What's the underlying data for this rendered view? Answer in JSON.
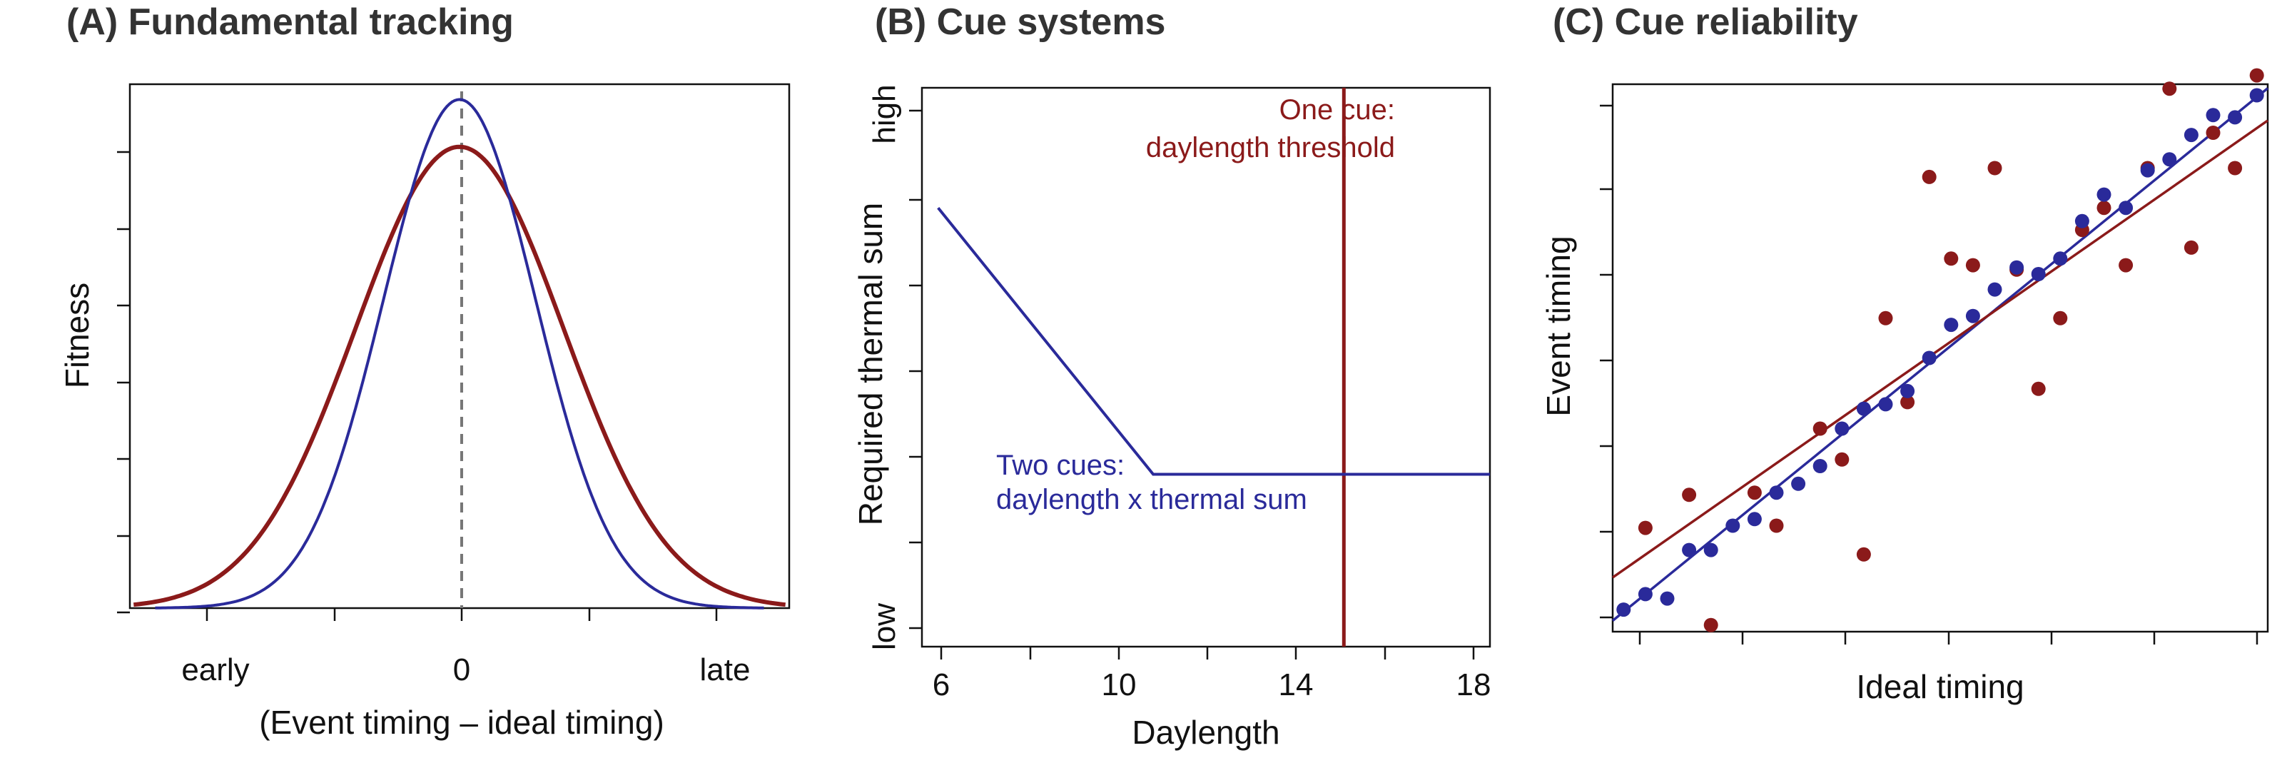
{
  "colors": {
    "red": "#8b1a1a",
    "blue": "#2a2a9a",
    "axis": "#111111",
    "dashed": "#777777"
  },
  "chart_data": [
    {
      "type": "line",
      "title": "(A) Fundamental tracking",
      "xlabel": "(Event timing – ideal timing)",
      "ylabel": "Fitness",
      "x_tick_labels": [
        "early",
        "0",
        "late"
      ],
      "xlim": [
        -2.6,
        2.6
      ],
      "ylim": [
        0,
        1.03
      ],
      "reference_line": {
        "x": 0,
        "style": "dashed"
      },
      "series": [
        {
          "color": "red",
          "curve": "gaussian",
          "peak": 0.907,
          "sd": 0.82
        },
        {
          "color": "blue",
          "curve": "gaussian",
          "peak": 1.0,
          "sd": 0.6
        }
      ]
    },
    {
      "type": "line",
      "title": "(B) Cue systems",
      "xlabel": "Daylength",
      "ylabel": "Required thermal sum",
      "x_ticks": [
        6,
        10,
        14,
        18
      ],
      "y_tick_labels": [
        "high",
        "low"
      ],
      "xlim": [
        5.6,
        19.6
      ],
      "ylim": [
        -0.03,
        1.04
      ],
      "series": [
        {
          "name": "One cue:\ndaylength threshold",
          "color": "red",
          "label_lines": [
            "One cue:",
            "daylength threshold"
          ],
          "type": "vertical",
          "x": 16
        },
        {
          "name": "Two cues:\ndaylength x thermal sum",
          "color": "blue",
          "label_lines": [
            "Two cues:",
            "daylength x thermal sum"
          ],
          "x": [
            6,
            11.3,
            19.6
          ],
          "y": [
            0.81,
            0.3,
            0.3
          ]
        }
      ]
    },
    {
      "type": "scatter",
      "title": "(C) Cue reliability",
      "xlabel": "Ideal timing",
      "ylabel": "Event timing",
      "xlim": [
        -0.5,
        29.5
      ],
      "ylim": [
        -0.6,
        24.2
      ],
      "series": [
        {
          "color": "blue",
          "x": [
            0,
            1,
            2,
            3,
            4,
            5,
            6,
            7,
            8,
            9,
            10,
            11,
            12,
            13,
            14,
            15,
            16,
            17,
            18,
            19,
            20,
            21,
            22,
            23,
            24,
            25,
            26,
            27,
            28,
            29
          ],
          "y": [
            0.4,
            1.1,
            0.9,
            3.1,
            3.1,
            4.2,
            4.5,
            5.7,
            6.1,
            6.9,
            8.6,
            9.5,
            9.7,
            10.3,
            11.8,
            13.3,
            13.7,
            14.9,
            15.9,
            15.6,
            16.3,
            18.0,
            19.2,
            18.6,
            20.3,
            20.8,
            21.9,
            22.8,
            22.7,
            23.7
          ],
          "fit": {
            "slope": 0.804,
            "intercept": 0.3
          }
        },
        {
          "color": "red",
          "x": [
            1,
            3,
            4,
            6,
            7,
            9,
            10,
            11,
            12,
            13,
            14,
            15,
            16,
            17,
            18,
            19,
            20,
            21,
            22,
            23,
            24,
            25,
            26,
            27,
            28,
            29
          ],
          "y": [
            4.1,
            5.6,
            -0.3,
            5.7,
            4.2,
            8.6,
            7.2,
            2.9,
            13.6,
            9.8,
            20.0,
            16.3,
            16.0,
            20.4,
            15.8,
            10.4,
            13.6,
            17.6,
            18.6,
            16.0,
            20.4,
            24.0,
            16.8,
            22.0,
            20.4,
            24.6
          ],
          "fit": {
            "slope": 0.69,
            "intercept": 2.2
          }
        }
      ]
    }
  ]
}
